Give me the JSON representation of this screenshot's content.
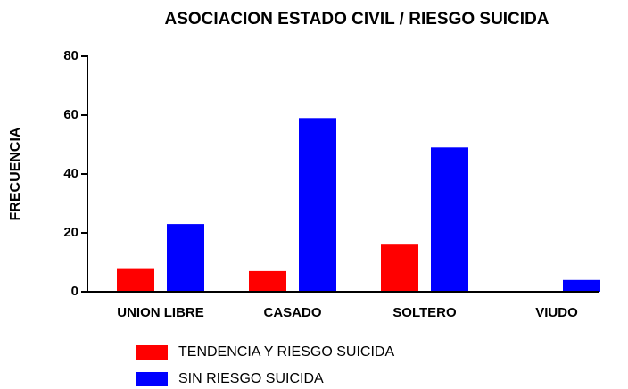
{
  "chart_data": {
    "type": "bar",
    "title": "ASOCIACION ESTADO CIVIL / RIESGO SUICIDA",
    "y_label": "FRECUENCIA",
    "categories": [
      "UNION LIBRE",
      "CASADO",
      "SOLTERO",
      "VIUDO"
    ],
    "series": [
      {
        "name": "TENDENCIA Y RIESGO SUICIDA",
        "color": "#ff0000",
        "values": [
          8,
          7,
          16,
          0
        ]
      },
      {
        "name": "SIN RIESGO SUICIDA",
        "color": "#0000ff",
        "values": [
          23,
          59,
          49,
          4
        ]
      }
    ],
    "ylim": [
      0,
      80
    ],
    "yticks": [
      0,
      20,
      40,
      60,
      80
    ]
  }
}
